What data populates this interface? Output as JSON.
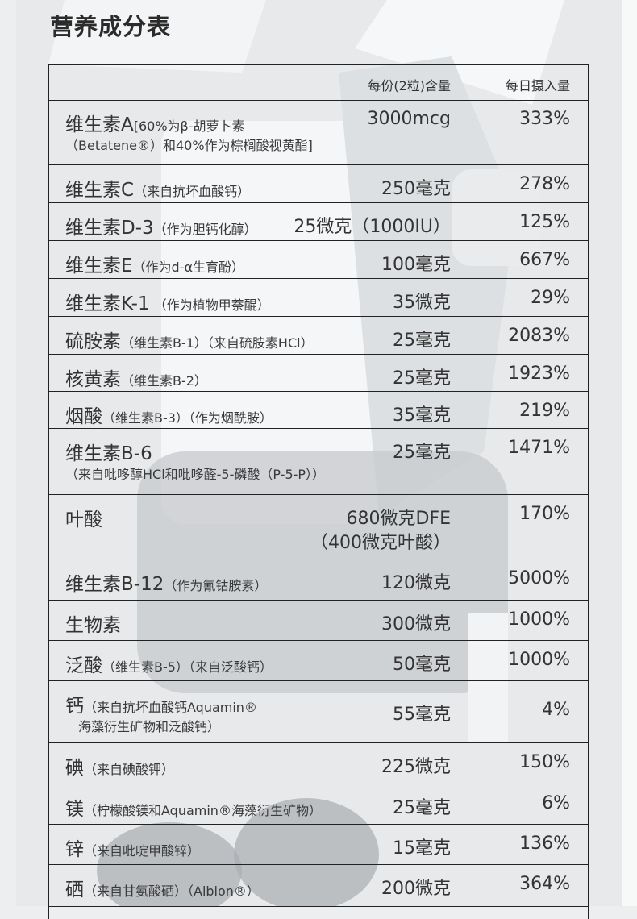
{
  "title": "营养成分表",
  "header": {
    "amount": "每份(2粒)含量",
    "daily": "每日摄入量"
  },
  "rows": [
    {
      "name": "维生素A",
      "note": "[60%为β-胡萝卜素",
      "sub": "（Betatene®）和40%作为棕榈酸视黄酯]",
      "amount": "3000mcg",
      "amount2": "",
      "daily": "333%"
    },
    {
      "name": "维生素C",
      "note": "（来自抗坏血酸钙）",
      "sub": "",
      "amount": "250毫克",
      "amount2": "",
      "daily": "278%"
    },
    {
      "name": "维生素D-3",
      "note": "（作为胆钙化醇）",
      "sub": "",
      "amount": "25微克（1000IU）",
      "amount2": "",
      "daily": "125%"
    },
    {
      "name": "维生素E",
      "note": "（作为d-α生育酚）",
      "sub": "",
      "amount": "100毫克",
      "amount2": "",
      "daily": "667%"
    },
    {
      "name": "维生素K-1",
      "note": " （作为植物甲萘醌）",
      "sub": "",
      "amount": "35微克",
      "amount2": "",
      "daily": "29%"
    },
    {
      "name": "硫胺素",
      "note": "（维生素B-1）（来自硫胺素HCl）",
      "sub": "",
      "amount": "25毫克",
      "amount2": "",
      "daily": "2083%"
    },
    {
      "name": "核黄素",
      "note": "（维生素B-2）",
      "sub": "",
      "amount": "25毫克",
      "amount2": "",
      "daily": "1923%"
    },
    {
      "name": "烟酸",
      "note": "（维生素B-3）（作为烟酰胺）",
      "sub": "",
      "amount": "35毫克",
      "amount2": "",
      "daily": "219%"
    },
    {
      "name": "维生素B-6",
      "note": "",
      "sub": "（来自吡哆醇HCl和吡哆醛-5-磷酸（P-5-P））",
      "amount": "25毫克",
      "amount2": "",
      "daily": "1471%"
    },
    {
      "name": "叶酸",
      "note": "",
      "sub": "",
      "amount": "680微克DFE",
      "amount2": "（400微克叶酸）",
      "daily": "170%"
    },
    {
      "name": "维生素B-12",
      "note": "（作为氰钴胺素）",
      "sub": "",
      "amount": "120微克",
      "amount2": "",
      "daily": "5000%"
    },
    {
      "name": "生物素",
      "note": "",
      "sub": "",
      "amount": "300微克",
      "amount2": "",
      "daily": "1000%"
    },
    {
      "name": "泛酸",
      "note": "（维生素B-5）（来自泛酸钙）",
      "sub": "",
      "amount": "50毫克",
      "amount2": "",
      "daily": "1000%"
    },
    {
      "name": "钙",
      "note": "（来自抗坏血酸钙Aquamin®",
      "sub": "海藻衍生矿物和泛酸钙）",
      "amount": "55毫克",
      "amount2": "",
      "daily": "4%"
    },
    {
      "name": "碘",
      "note": "（来自碘酸钾）",
      "sub": "",
      "amount": "225微克",
      "amount2": "",
      "daily": "150%"
    },
    {
      "name": "镁",
      "note": "（柠檬酸镁和Aquamin®海藻衍生矿物）",
      "sub": "",
      "amount": "25毫克",
      "amount2": "",
      "daily": "6%"
    },
    {
      "name": "锌",
      "note": "（来自吡啶甲酸锌）",
      "sub": "",
      "amount": "15毫克",
      "amount2": "",
      "daily": "136%"
    },
    {
      "name": "硒",
      "note": "（来自甘氨酸硒）（Albion®）",
      "sub": "",
      "amount": "200微克",
      "amount2": "",
      "daily": "364%"
    }
  ]
}
